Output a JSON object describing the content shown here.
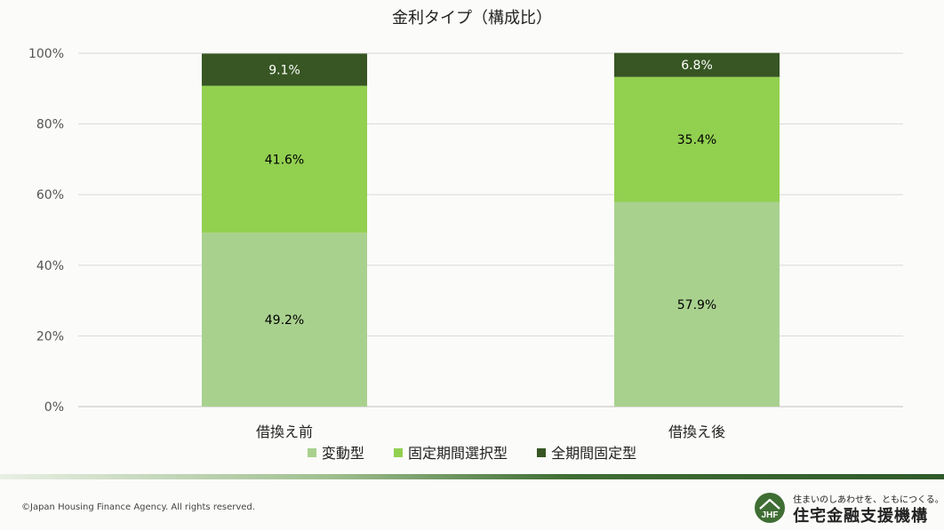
{
  "chart_data": {
    "type": "bar",
    "stacked": true,
    "title": "金利タイプ（構成比）",
    "categories": [
      "借換え前",
      "借換え後"
    ],
    "series": [
      {
        "name": "変動型",
        "values": [
          49.2,
          57.9
        ],
        "labels": [
          "49.2%",
          "57.9%"
        ],
        "color": "#a9d18e"
      },
      {
        "name": "固定期間選択型",
        "values": [
          41.6,
          35.4
        ],
        "labels": [
          "41.6%",
          "35.4%"
        ],
        "color": "#92d050"
      },
      {
        "name": "全期間固定型",
        "values": [
          9.1,
          6.8
        ],
        "labels": [
          "9.1%",
          "6.8%"
        ],
        "color": "#375623"
      }
    ],
    "ylim": [
      0,
      100
    ],
    "yticks": [
      "0%",
      "20%",
      "40%",
      "60%",
      "80%",
      "100%"
    ],
    "grid": true,
    "legend_position": "bottom"
  },
  "footer": {
    "copyright": "©Japan Housing Finance Agency. All rights reserved.",
    "logo_tagline": "住まいのしあわせを、ともにつくる。",
    "logo_name": "住宅金融支援機構",
    "logo_mark": "JHF"
  },
  "colors": {
    "label_dark": "#000000",
    "label_light": "#ffffff"
  }
}
